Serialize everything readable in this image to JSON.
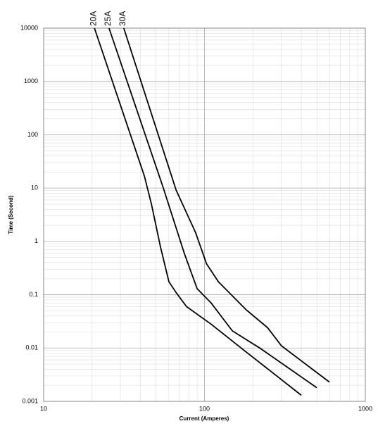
{
  "chart_data": {
    "type": "line",
    "xlabel": "Current  (Amperes)",
    "ylabel": "Time (Second)",
    "xscale": "log",
    "yscale": "log",
    "grid": true,
    "xlim": [
      10,
      1000
    ],
    "xticks": [
      10,
      100,
      1000
    ],
    "ylim": [
      0.001,
      10000
    ],
    "yticks": [
      0.001,
      0.01,
      0.1,
      1,
      10,
      100,
      1000,
      10000
    ],
    "series": [
      {
        "name": "20A",
        "color": "#000000",
        "x": [
          20.7,
          42.3,
          46.8,
          53.2,
          60.1,
          66.6,
          77.3,
          110,
          182,
          400
        ],
        "values": [
          10000,
          16.8,
          5,
          0.8,
          0.175,
          0.11,
          0.06,
          0.028,
          0.0084,
          0.0013
        ]
      },
      {
        "name": "25A",
        "color": "#000000",
        "x": [
          25.5,
          55.5,
          75,
          90,
          110,
          149,
          223,
          499
        ],
        "values": [
          10000,
          10,
          0.59,
          0.13,
          0.07,
          0.021,
          0.0098,
          0.0018
        ]
      },
      {
        "name": "30A",
        "color": "#000000",
        "x": [
          31.5,
          66.6,
          88,
          103,
          122,
          182,
          247,
          301,
          598
        ],
        "values": [
          10000,
          9.2,
          1.47,
          0.38,
          0.175,
          0.052,
          0.024,
          0.011,
          0.0023
        ]
      }
    ]
  }
}
